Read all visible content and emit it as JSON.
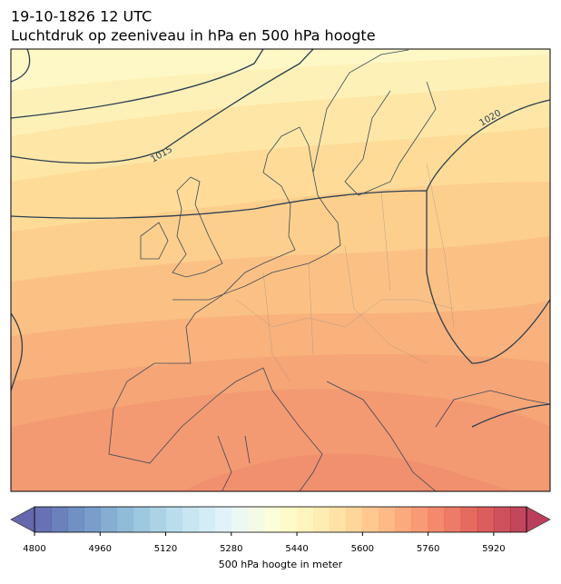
{
  "header": {
    "title": "19-10-1826 12 UTC",
    "subtitle": "Luchtdruk op zeeniveau in hPa en 500 hPa hoogte"
  },
  "contour_labels": [
    "1015",
    "1020"
  ],
  "colorbar": {
    "range": [
      4800,
      6000
    ],
    "step": 40,
    "colors": [
      "#313695",
      "#4575b4",
      "#74add1",
      "#abd9e9",
      "#e0f3f8",
      "#ffffbf",
      "#fee090",
      "#fdae61",
      "#f46d43",
      "#d73027",
      "#a50026"
    ],
    "ticks": [
      4800,
      4960,
      5120,
      5280,
      5440,
      5600,
      5760,
      5920
    ],
    "label": "500 hPa hoogte in meter"
  }
}
